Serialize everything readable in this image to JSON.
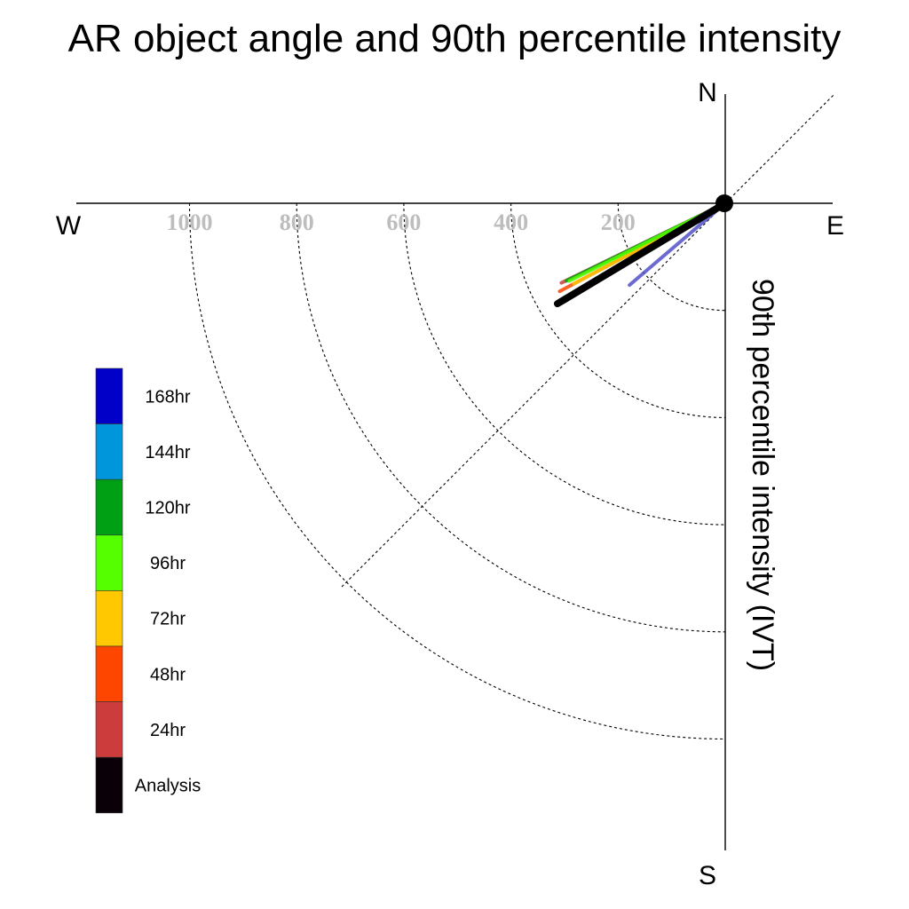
{
  "chart_data": {
    "type": "polar-vector",
    "title": "AR object angle and 90th percentile intensity",
    "ylabel": "90th percentile intensity (IVT)",
    "directions": {
      "north": "N",
      "south": "S",
      "east": "E",
      "west": "W"
    },
    "radial_ticks": [
      200,
      400,
      600,
      800,
      1000
    ],
    "radial_tick_labels": [
      "200",
      "400",
      "600",
      "800",
      "1000"
    ],
    "rlim": [
      0,
      1200
    ],
    "grid": true,
    "legend_position": "left",
    "legend": [
      {
        "label": "168hr",
        "color": "#0000c8"
      },
      {
        "label": "144hr",
        "color": "#0096dc"
      },
      {
        "label": "120hr",
        "color": "#00a014"
      },
      {
        "label": "96hr",
        "color": "#55ff00"
      },
      {
        "label": "72hr",
        "color": "#ffc800"
      },
      {
        "label": "48hr",
        "color": "#ff4600"
      },
      {
        "label": "24hr",
        "color": "#cd3c3c"
      },
      {
        "label": "Analysis",
        "color": "#0a0008"
      }
    ],
    "series": [
      {
        "name": "24hr",
        "color": "#cd3c3c",
        "bearing_deg": 244.1,
        "intensity": 340
      },
      {
        "name": "48hr",
        "color": "#ff4600",
        "bearing_deg": 242.0,
        "intensity": 350
      },
      {
        "name": "72hr",
        "color": "#ffc800",
        "bearing_deg": 242.0,
        "intensity": 320
      },
      {
        "name": "120hr",
        "color": "#00a014",
        "bearing_deg": 244.0,
        "intensity": 330
      },
      {
        "name": "96hr",
        "color": "#55ff00",
        "bearing_deg": 243.5,
        "intensity": 325
      },
      {
        "name": "168hr",
        "color": "#5050c8",
        "bearing_deg": 229.5,
        "intensity": 235
      },
      {
        "name": "Analysis",
        "color": "#000000",
        "bearing_deg": 239.1,
        "intensity": 365
      }
    ]
  }
}
